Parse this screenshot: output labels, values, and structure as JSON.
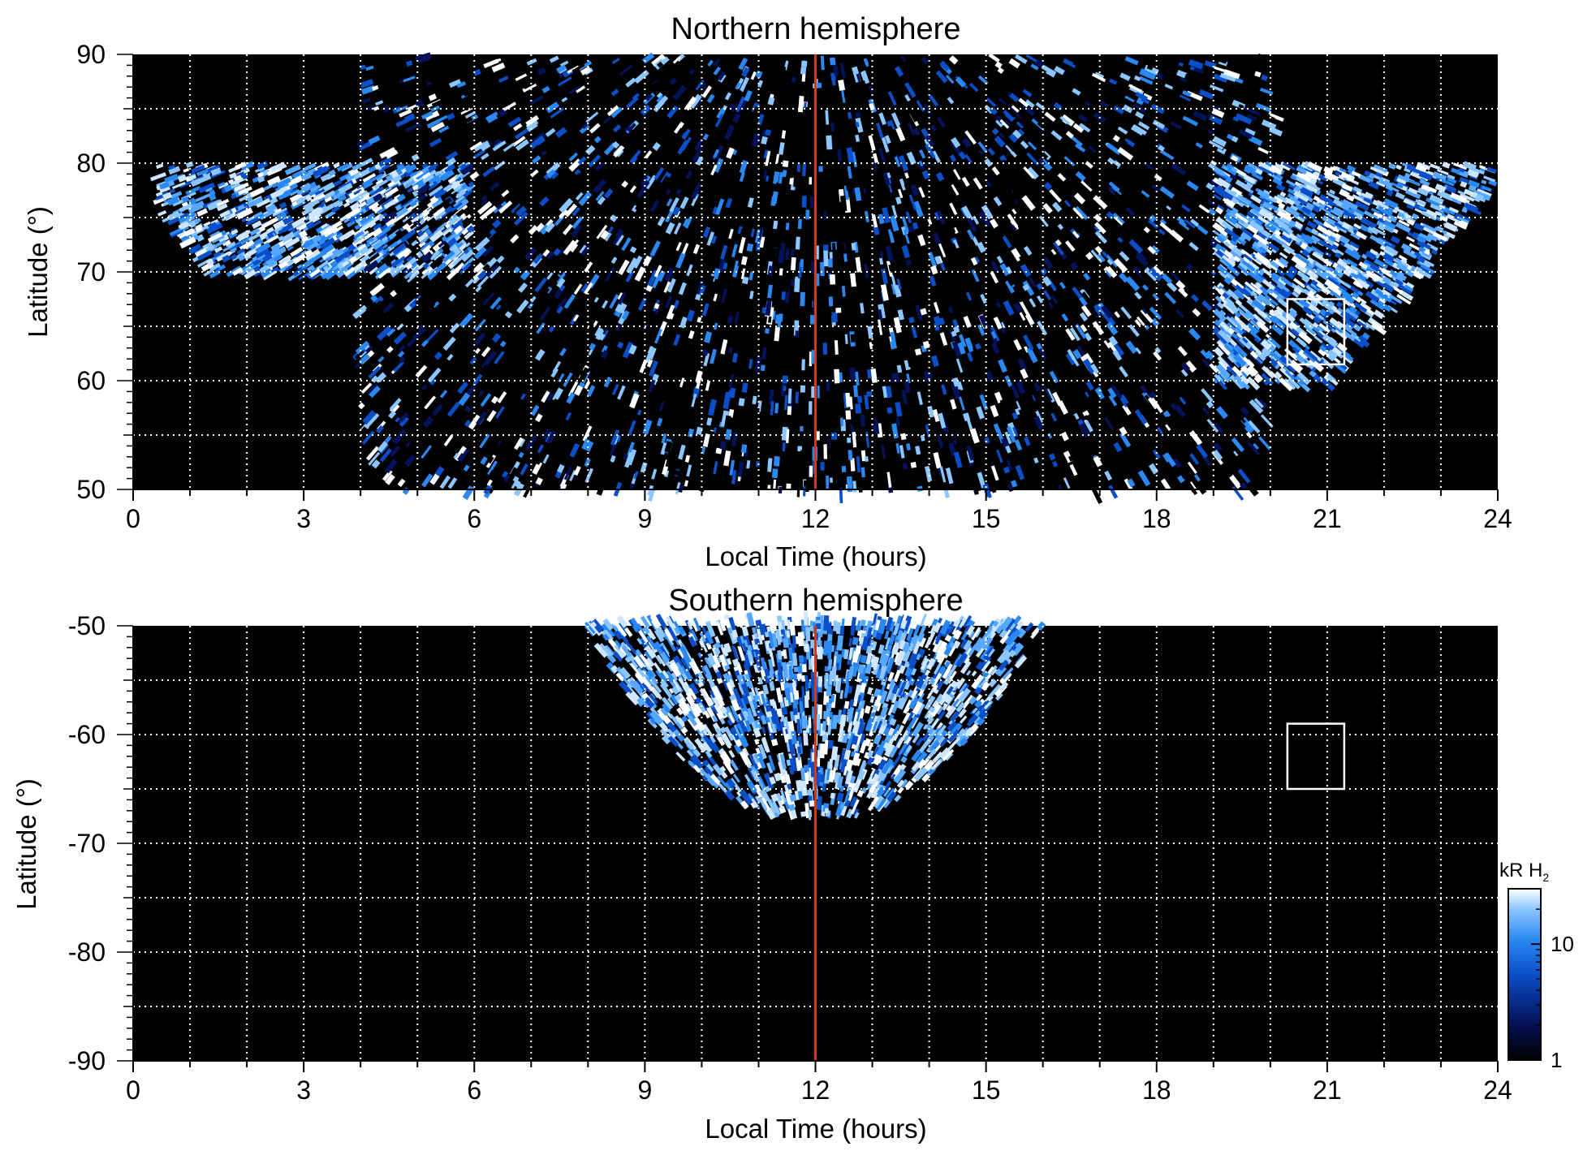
{
  "chart_data": [
    {
      "type": "heatmap",
      "title": "Northern hemisphere",
      "xlabel": "Local Time (hours)",
      "ylabel": "Latitude (°)",
      "xlim": [
        0,
        24
      ],
      "ylim": [
        50,
        90
      ],
      "xticks": [
        "0",
        "3",
        "6",
        "9",
        "12",
        "15",
        "18",
        "21",
        "24"
      ],
      "yticks": [
        "50",
        "60",
        "70",
        "80",
        "90"
      ],
      "grid": true,
      "reference_line": {
        "local_time": 12,
        "color": "#d23a1b"
      },
      "box": {
        "lt": [
          20.3,
          21.3
        ],
        "lat": [
          61.5,
          67.5
        ]
      },
      "colormap": "black-blue-white",
      "emission_regions": [
        {
          "description": "bright auroral oval arc on dawn side",
          "lt_range": [
            0.5,
            6
          ],
          "lat_range": [
            70,
            80
          ],
          "level": "high"
        },
        {
          "description": "dayside noisy emission",
          "lt_range": [
            4,
            20
          ],
          "lat_range": [
            50,
            90
          ],
          "level": "medium"
        },
        {
          "description": "dusk side auroral emission",
          "lt_range": [
            19,
            24
          ],
          "lat_range": [
            60,
            80
          ],
          "level": "high"
        }
      ]
    },
    {
      "type": "heatmap",
      "title": "Southern hemisphere",
      "xlabel": "Local Time (hours)",
      "ylabel": "Latitude (°)",
      "xlim": [
        0,
        24
      ],
      "ylim": [
        -90,
        -50
      ],
      "xticks": [
        "0",
        "3",
        "6",
        "9",
        "12",
        "15",
        "18",
        "21",
        "24"
      ],
      "yticks": [
        "-90",
        "-80",
        "-70",
        "-60",
        "-50"
      ],
      "grid": true,
      "reference_line": {
        "local_time": 12,
        "color": "#d23a1b"
      },
      "box": {
        "lt": [
          20.3,
          21.3
        ],
        "lat": [
          -65,
          -59
        ]
      },
      "colormap": "black-blue-white",
      "emission_regions": [
        {
          "description": "dayside bowl of emission",
          "lt_range": [
            8,
            16
          ],
          "lat_range": [
            -68,
            -50
          ],
          "level": "high"
        }
      ]
    }
  ],
  "colorbar": {
    "title": "kR H",
    "title_subscript": "2",
    "ticks": [
      "1",
      "10"
    ],
    "scale": "log",
    "range": [
      1,
      30
    ],
    "colors": [
      "#000000",
      "#04125a",
      "#0a4fc8",
      "#2a88f2",
      "#8cc6ff",
      "#ffffff"
    ]
  }
}
